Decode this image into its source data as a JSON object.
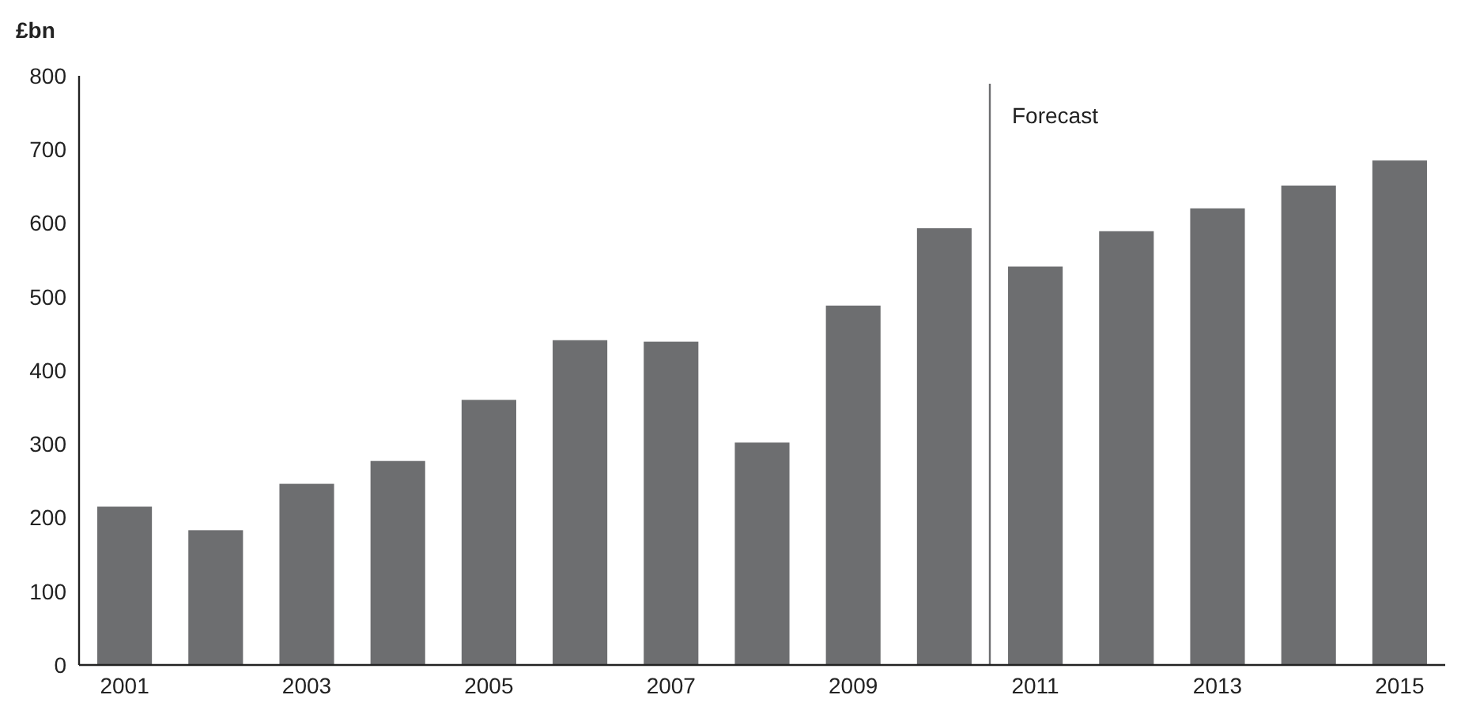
{
  "chart_data": {
    "type": "bar",
    "ylabel": "£bn",
    "x": [
      2001,
      2002,
      2003,
      2004,
      2005,
      2006,
      2007,
      2008,
      2009,
      2010,
      2011,
      2012,
      2013,
      2014,
      2015
    ],
    "values": [
      215,
      183,
      246,
      277,
      360,
      441,
      439,
      302,
      488,
      593,
      541,
      589,
      620,
      651,
      685
    ],
    "color": "#6d6e70",
    "xlim": [
      2000.5,
      2015.5
    ],
    "xticks": [
      2001,
      2003,
      2005,
      2007,
      2009,
      2011,
      2013,
      2015
    ],
    "ylim": [
      0,
      800
    ],
    "yticks": [
      0,
      100,
      200,
      300,
      400,
      500,
      600,
      700,
      800
    ],
    "grid": false,
    "ref_lines": [
      {
        "axis": "x",
        "value": 2010.5,
        "label": "Forecast",
        "color": "#6d6e70"
      }
    ]
  }
}
